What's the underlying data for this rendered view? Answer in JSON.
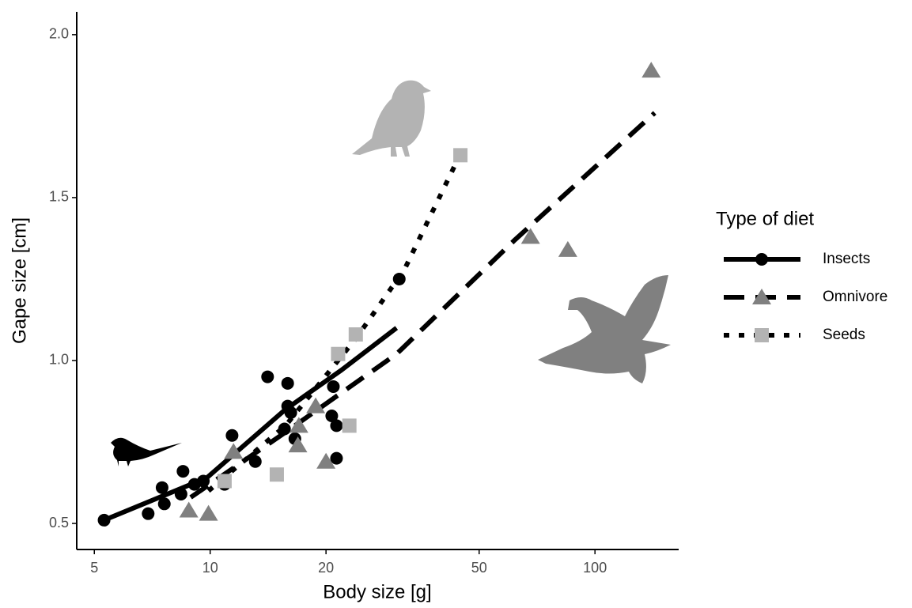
{
  "chart_data": {
    "type": "scatter",
    "xlabel": "Body size [g]",
    "ylabel": "Gape size [cm]",
    "xscale": "log",
    "xlim": [
      4.5,
      165
    ],
    "ylim": [
      0.42,
      2.07
    ],
    "xticks": [
      5,
      10,
      20,
      50,
      100
    ],
    "yticks": [
      0.5,
      {
        "value": 1,
        "label": "1.0"
      },
      1.5,
      {
        "value": 2,
        "label": "2.0"
      }
    ],
    "legend_title": "Type of diet",
    "legend_position": "right",
    "series": [
      {
        "name": "Insects",
        "color": "#000000",
        "line_color": "#000000",
        "marker": "circle",
        "line_style": "solid",
        "x": [
          5.3,
          6.9,
          7.5,
          7.6,
          8.5,
          8.4,
          9.1,
          9.6,
          10.9,
          11.4,
          13.1,
          14.1,
          15.6,
          15.9,
          15.9,
          16.2,
          16.6,
          20.9,
          20.7,
          21.3,
          21.3,
          31
        ],
        "values": [
          0.51,
          0.53,
          0.61,
          0.56,
          0.66,
          0.59,
          0.62,
          0.63,
          0.62,
          0.77,
          0.69,
          0.95,
          0.79,
          0.93,
          0.86,
          0.84,
          0.76,
          0.92,
          0.83,
          0.8,
          0.7,
          1.25
        ],
        "fit_x": [
          5.3,
          9.8,
          15.7,
          21.9,
          30.5
        ],
        "fit_values": [
          0.51,
          0.64,
          0.85,
          0.97,
          1.1
        ]
      },
      {
        "name": "Omnivore",
        "color": "#808080",
        "line_color": "#000000",
        "marker": "triangle",
        "line_style": "dashed",
        "x": [
          8.8,
          9.9,
          11.5,
          16.9,
          17,
          18.8,
          20,
          68,
          85,
          140
        ],
        "values": [
          0.54,
          0.53,
          0.72,
          0.74,
          0.8,
          0.86,
          0.69,
          1.38,
          1.34,
          1.89
        ],
        "fit_x": [
          8.9,
          15.7,
          30.5,
          61.9,
          143
        ],
        "fit_values": [
          0.58,
          0.78,
          1.02,
          1.37,
          1.76
        ]
      },
      {
        "name": "Seeds",
        "color": "#b3b3b3",
        "line_color": "#000000",
        "marker": "square",
        "line_style": "dotted",
        "x": [
          10.9,
          14.9,
          21.5,
          23.9,
          23,
          44.7
        ],
        "values": [
          0.63,
          0.65,
          1.02,
          1.08,
          0.8,
          1.63
        ],
        "fit_x": [
          9.9,
          15.7,
          24.0,
          32.0,
          43.7
        ],
        "fit_values": [
          0.6,
          0.8,
          1.07,
          1.28,
          1.61
        ]
      }
    ]
  }
}
